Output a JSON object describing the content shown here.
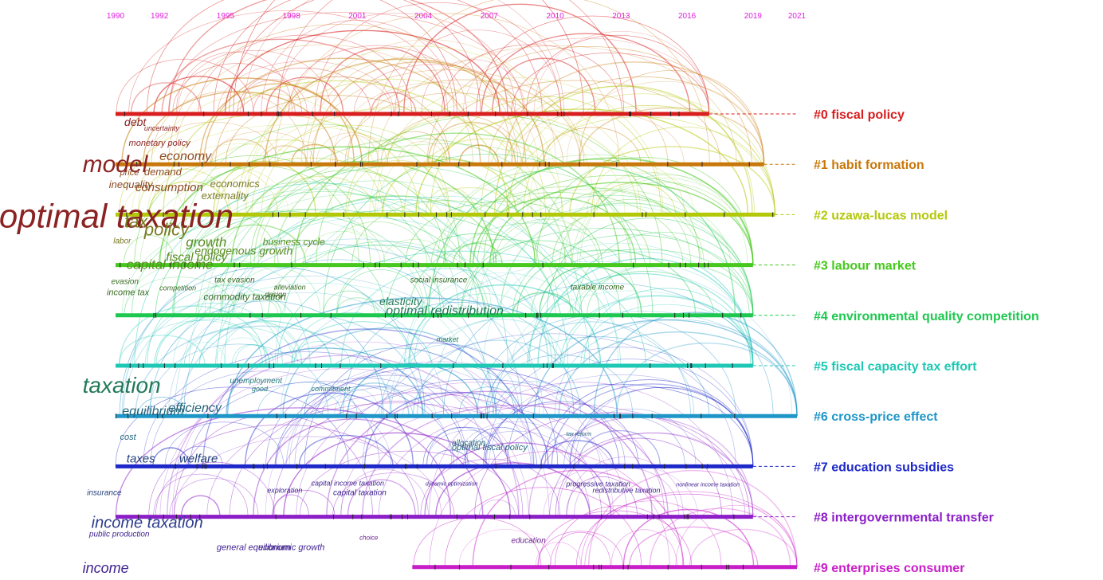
{
  "years": [
    "1990",
    "1992",
    "1995",
    "1998",
    "2001",
    "2004",
    "2007",
    "2010",
    "2013",
    "2016",
    "2019",
    "2021"
  ],
  "year_range": [
    1990,
    2021
  ],
  "year_color": "#e11ee1",
  "clusters": [
    {
      "label": "#0 fiscal policy",
      "color": "#d81e1e",
      "start": 1990,
      "end": 2017
    },
    {
      "label": "#1 habit formation",
      "color": "#c8780a",
      "start": 1990,
      "end": 2019.5
    },
    {
      "label": "#2 uzawa-lucas model",
      "color": "#b4c80a",
      "start": 1990,
      "end": 2020
    },
    {
      "label": "#3 labour market",
      "color": "#46c81e",
      "start": 1990,
      "end": 2019
    },
    {
      "label": "#4 environmental quality competition",
      "color": "#1ec850",
      "start": 1990,
      "end": 2019
    },
    {
      "label": "#5 fiscal capacity tax effort",
      "color": "#1ec8b4",
      "start": 1990,
      "end": 2019
    },
    {
      "label": "#6 cross-price effect",
      "color": "#1e96c8",
      "start": 1990,
      "end": 2021
    },
    {
      "label": "#7 education subsidies",
      "color": "#1e28c8",
      "start": 1990,
      "end": 2019
    },
    {
      "label": "#8 intergovernmental transfer",
      "color": "#8c1ec8",
      "start": 1990,
      "end": 2019
    },
    {
      "label": "#9 enterprises consumer",
      "color": "#c81ec8",
      "start": 2003.5,
      "end": 2021
    }
  ],
  "keywords": [
    {
      "text": "debt",
      "color": "#8b2323",
      "size": 14,
      "c": 0,
      "off": 15,
      "xyr": 1990.4
    },
    {
      "text": "uncertainty",
      "color": "#8b2323",
      "size": 9,
      "c": 0,
      "off": 21,
      "xyr": 1991.3
    },
    {
      "text": "monetary policy",
      "color": "#8b2323",
      "size": 11,
      "c": 0,
      "off": 40,
      "xyr": 1990.6
    },
    {
      "text": "model",
      "color": "#8b2323",
      "size": 30,
      "c": 1,
      "off": 10,
      "xyr": 1988.5
    },
    {
      "text": "economy",
      "color": "#8b4a23",
      "size": 16,
      "c": 1,
      "off": -5,
      "xyr": 1992
    },
    {
      "text": "price",
      "color": "#8b4a23",
      "size": 11,
      "c": 1,
      "off": 14,
      "xyr": 1990.2
    },
    {
      "text": "demand",
      "color": "#8b4a23",
      "size": 13,
      "c": 1,
      "off": 14,
      "xyr": 1991.3
    },
    {
      "text": "inequality",
      "color": "#8b4a23",
      "size": 13,
      "c": 1,
      "off": 30,
      "xyr": 1989.7
    },
    {
      "text": "consumption",
      "color": "#8b4a23",
      "size": 15,
      "c": 1,
      "off": 34,
      "xyr": 1990.9
    },
    {
      "text": "economics",
      "color": "#7a7a23",
      "size": 13,
      "c": 1,
      "off": 29,
      "xyr": 1994.3
    },
    {
      "text": "externality",
      "color": "#7a7a23",
      "size": 13,
      "c": 1,
      "off": 44,
      "xyr": 1993.9
    },
    {
      "text": "optimal taxation",
      "color": "#8b2323",
      "size": 42,
      "c": 2,
      "off": 16,
      "xyr": 1984.7
    },
    {
      "text": "tax",
      "color": "#7a7a23",
      "size": 22,
      "c": 2,
      "off": 16,
      "xyr": 1990.4
    },
    {
      "text": "policy",
      "color": "#7a7a23",
      "size": 22,
      "c": 2,
      "off": 26,
      "xyr": 1991.3
    },
    {
      "text": "labor",
      "color": "#7a7a23",
      "size": 10,
      "c": 2,
      "off": 36,
      "xyr": 1989.9
    },
    {
      "text": "growth",
      "color": "#5a8b23",
      "size": 17,
      "c": 2,
      "off": 40,
      "xyr": 1993.2
    },
    {
      "text": "business cycle",
      "color": "#5a8b23",
      "size": 12,
      "c": 2,
      "off": 38,
      "xyr": 1996.7
    },
    {
      "text": "endogenous growth",
      "color": "#5a8b23",
      "size": 14,
      "c": 2,
      "off": 50,
      "xyr": 1993.6
    },
    {
      "text": "fiscal policy",
      "color": "#5a8b23",
      "size": 15,
      "c": 2,
      "off": 58,
      "xyr": 1992.3
    },
    {
      "text": "capital income",
      "color": "#5a8b23",
      "size": 17,
      "c": 3,
      "off": 5,
      "xyr": 1990.5
    },
    {
      "text": "evasion",
      "color": "#3a6b23",
      "size": 10,
      "c": 3,
      "off": 24,
      "xyr": 1989.8
    },
    {
      "text": "tax evasion",
      "color": "#3a6b23",
      "size": 10,
      "c": 3,
      "off": 22,
      "xyr": 1994.5
    },
    {
      "text": "alleviation",
      "color": "#3a6b23",
      "size": 9,
      "c": 3,
      "off": 31,
      "xyr": 1997.2
    },
    {
      "text": "income tax",
      "color": "#3a6b23",
      "size": 11,
      "c": 3,
      "off": 38,
      "xyr": 1989.6
    },
    {
      "text": "competition",
      "color": "#3a6b23",
      "size": 9,
      "c": 3,
      "off": 32,
      "xyr": 1992
    },
    {
      "text": "design",
      "color": "#3a6b23",
      "size": 9,
      "c": 3,
      "off": 40,
      "xyr": 1996.8
    },
    {
      "text": "commodity taxation",
      "color": "#3a6b23",
      "size": 12,
      "c": 3,
      "off": 44,
      "xyr": 1994
    },
    {
      "text": "social insurance",
      "color": "#3a6b23",
      "size": 10,
      "c": 3,
      "off": 22,
      "xyr": 2003.4
    },
    {
      "text": "taxable income",
      "color": "#3a6b23",
      "size": 10,
      "c": 3,
      "off": 31,
      "xyr": 2010.7
    },
    {
      "text": "elasticity",
      "color": "#237a5a",
      "size": 14,
      "c": 4,
      "off": -13,
      "xyr": 2002
    },
    {
      "text": "optimal redistribution",
      "color": "#237a5a",
      "size": 16,
      "c": 4,
      "off": -1,
      "xyr": 2002.3
    },
    {
      "text": "market",
      "color": "#237a5a",
      "size": 9,
      "c": 4,
      "off": 33,
      "xyr": 2004.6
    },
    {
      "text": "taxation",
      "color": "#237a5a",
      "size": 28,
      "c": 5,
      "off": 34,
      "xyr": 1988.5
    },
    {
      "text": "unemployment",
      "color": "#237a7a",
      "size": 10,
      "c": 5,
      "off": 22,
      "xyr": 1995.2
    },
    {
      "text": "good",
      "color": "#237a7a",
      "size": 9,
      "c": 5,
      "off": 32,
      "xyr": 1996.2
    },
    {
      "text": "commitment",
      "color": "#237a7a",
      "size": 9,
      "c": 5,
      "off": 32,
      "xyr": 1998.9
    },
    {
      "text": "equilibrium",
      "color": "#23657a",
      "size": 16,
      "c": 6,
      "off": -1,
      "xyr": 1990.3
    },
    {
      "text": "efficiency",
      "color": "#23657a",
      "size": 16,
      "c": 6,
      "off": -5,
      "xyr": 1992.4
    },
    {
      "text": "cost",
      "color": "#23657a",
      "size": 11,
      "c": 6,
      "off": 30,
      "xyr": 1990.2
    },
    {
      "text": "allocation",
      "color": "#23657a",
      "size": 10,
      "c": 6,
      "off": 37,
      "xyr": 2005.3
    },
    {
      "text": "optimal fiscal policy",
      "color": "#23657a",
      "size": 11,
      "c": 6,
      "off": 43,
      "xyr": 2005.3
    },
    {
      "text": "tax reform",
      "color": "#23657a",
      "size": 7,
      "c": 6,
      "off": 25,
      "xyr": 2010.5
    },
    {
      "text": "taxes",
      "color": "#23407a",
      "size": 15,
      "c": 7,
      "off": -5,
      "xyr": 1990.5
    },
    {
      "text": "welfare",
      "color": "#23407a",
      "size": 15,
      "c": 7,
      "off": -5,
      "xyr": 1992.9
    },
    {
      "text": "insurance",
      "color": "#23407a",
      "size": 10,
      "c": 7,
      "off": 36,
      "xyr": 1988.7
    },
    {
      "text": "exploration",
      "color": "#402390",
      "size": 9,
      "c": 7,
      "off": 33,
      "xyr": 1996.9
    },
    {
      "text": "capital income taxation",
      "color": "#402390",
      "size": 9,
      "c": 7,
      "off": 24,
      "xyr": 1998.9
    },
    {
      "text": "capital taxation",
      "color": "#402390",
      "size": 10,
      "c": 7,
      "off": 36,
      "xyr": 1999.9
    },
    {
      "text": "dynamic optimization",
      "color": "#402390",
      "size": 7,
      "c": 7,
      "off": 24,
      "xyr": 2004.1
    },
    {
      "text": "progressive taxation",
      "color": "#402390",
      "size": 9,
      "c": 7,
      "off": 25,
      "xyr": 2010.5
    },
    {
      "text": "redistributive taxation",
      "color": "#402390",
      "size": 9,
      "c": 7,
      "off": 33,
      "xyr": 2011.7
    },
    {
      "text": "nonlinear income taxation",
      "color": "#402390",
      "size": 7,
      "c": 7,
      "off": 25,
      "xyr": 2015.5
    },
    {
      "text": "income taxation",
      "color": "#2c3c8b",
      "size": 20,
      "c": 8,
      "off": 14,
      "xyr": 1988.9
    },
    {
      "text": "public production",
      "color": "#402390",
      "size": 10,
      "c": 8,
      "off": 25,
      "xyr": 1988.8
    },
    {
      "text": "general equilibrium",
      "color": "#402390",
      "size": 11,
      "c": 8,
      "off": 42,
      "xyr": 1994.6
    },
    {
      "text": "economic growth",
      "color": "#402390",
      "size": 11,
      "c": 8,
      "off": 42,
      "xyr": 1996.5
    },
    {
      "text": "choice",
      "color": "#6a2390",
      "size": 8,
      "c": 8,
      "off": 29,
      "xyr": 2001.1
    },
    {
      "text": "education",
      "color": "#6a2390",
      "size": 10,
      "c": 8,
      "off": 33,
      "xyr": 2008
    },
    {
      "text": "income",
      "color": "#402390",
      "size": 18,
      "c": 9,
      "off": 7,
      "xyr": 1988.5
    }
  ]
}
